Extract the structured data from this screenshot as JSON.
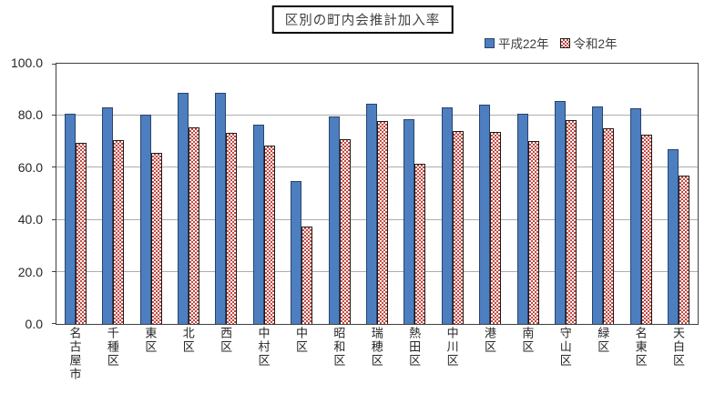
{
  "title": "区別の町内会推計加入率",
  "chart_data": {
    "type": "bar",
    "title": "区別の町内会推計加入率",
    "categories": [
      "名古屋市",
      "千種区",
      "東区",
      "北区",
      "西区",
      "中村区",
      "中区",
      "昭和区",
      "瑞穂区",
      "熱田区",
      "中川区",
      "港区",
      "南区",
      "守山区",
      "緑区",
      "名東区",
      "天白区"
    ],
    "series": [
      {
        "name": "平成22年",
        "values": [
          80.7,
          83.3,
          80.5,
          88.7,
          88.7,
          76.6,
          54.8,
          79.7,
          84.6,
          78.7,
          83.2,
          84.2,
          80.7,
          85.6,
          83.5,
          82.7,
          67.3
        ]
      },
      {
        "name": "令和2年",
        "values": [
          69.6,
          70.7,
          65.9,
          75.5,
          73.5,
          68.6,
          37.3,
          71.1,
          77.9,
          61.5,
          74.1,
          73.8,
          70.2,
          78.4,
          75.3,
          72.9,
          56.9
        ]
      }
    ],
    "ylim": [
      0,
      100
    ],
    "yticks": [
      "0.0",
      "20.0",
      "40.0",
      "60.0",
      "80.0",
      "100.0"
    ],
    "grid": true,
    "legend_position": "top-right"
  },
  "colors": {
    "series1_fill": "#4d7ebf",
    "series1_border": "#27456b",
    "series2_pattern": "#c24840",
    "series2_border": "#1a1a1a",
    "gridline": "#adadad",
    "axis": "#3f3f3f",
    "title_border": "#000000",
    "text": "#262626"
  }
}
